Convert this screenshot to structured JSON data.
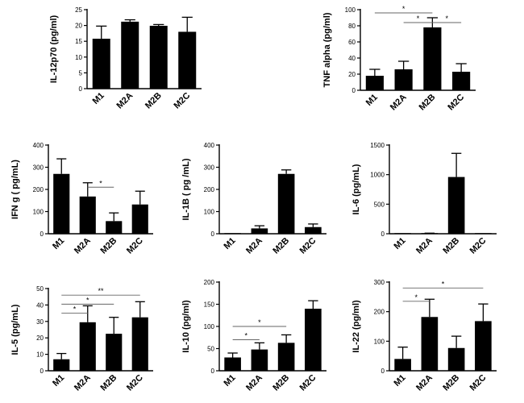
{
  "chart_data": [
    {
      "type": "bar",
      "ylabel": "IL-12p70 (pg/ml)",
      "categories": [
        "M1",
        "M2A",
        "M2B",
        "M2C"
      ],
      "values": [
        15.8,
        21.2,
        19.9,
        18.0
      ],
      "errors": [
        4.0,
        0.6,
        0.4,
        4.6
      ],
      "ylim": [
        0,
        25
      ],
      "yticks": [
        0,
        5,
        10,
        15,
        20,
        25
      ],
      "significance": []
    },
    {
      "type": "bar",
      "ylabel": "TNF alpha (pg/ml)",
      "categories": [
        "M1",
        "M2A",
        "M2B",
        "M2C"
      ],
      "values": [
        18,
        26,
        78,
        23
      ],
      "errors": [
        8,
        10,
        12,
        10
      ],
      "ylim": [
        0,
        100
      ],
      "yticks": [
        0,
        20,
        40,
        60,
        80,
        100
      ],
      "significance": [
        {
          "from": 0,
          "to": 2,
          "y": 96,
          "label": "*"
        },
        {
          "from": 1,
          "to": 2,
          "y": 84,
          "label": "*"
        },
        {
          "from": 2,
          "to": 3,
          "y": 84,
          "label": "*"
        }
      ]
    },
    {
      "type": "bar",
      "ylabel": "IFN g ( pg/mL)",
      "categories": [
        "M1",
        "M2A",
        "M2B",
        "M2C"
      ],
      "values": [
        270,
        168,
        57,
        132
      ],
      "errors": [
        68,
        62,
        37,
        60
      ],
      "ylim": [
        0,
        400
      ],
      "yticks": [
        0,
        100,
        200,
        300,
        400
      ],
      "significance": [
        {
          "from": 1,
          "to": 2,
          "y": 210,
          "label": "*"
        }
      ]
    },
    {
      "type": "bar",
      "ylabel": "IL-1B ( pg /mL)",
      "categories": [
        "M1",
        "M2A",
        "M2B",
        "M2C"
      ],
      "values": [
        0,
        24,
        270,
        30
      ],
      "errors": [
        0,
        12,
        18,
        14
      ],
      "ylim": [
        0,
        400
      ],
      "yticks": [
        0,
        100,
        200,
        300,
        400
      ],
      "significance": []
    },
    {
      "type": "bar",
      "ylabel": "IL-6 (pg/mL)",
      "categories": [
        "M1",
        "M2A",
        "M2B",
        "M2C"
      ],
      "values": [
        0,
        5,
        960,
        0
      ],
      "errors": [
        0,
        5,
        400,
        0
      ],
      "ylim": [
        0,
        1500
      ],
      "yticks": [
        0,
        500,
        1000,
        1500
      ],
      "significance": []
    },
    {
      "type": "bar",
      "ylabel": "IL-5 (pg/mL)",
      "categories": [
        "M1",
        "M2A",
        "M2B",
        "M2C"
      ],
      "values": [
        7,
        29.5,
        22.5,
        32.5
      ],
      "errors": [
        3.5,
        10,
        10,
        9.5
      ],
      "ylim": [
        0,
        50
      ],
      "yticks": [
        0,
        10,
        20,
        30,
        40,
        50
      ],
      "significance": [
        {
          "from": 0,
          "to": 3,
          "y": 46,
          "label": "**"
        },
        {
          "from": 0,
          "to": 2,
          "y": 40.5,
          "label": "*"
        },
        {
          "from": 0,
          "to": 1,
          "y": 35,
          "label": "*"
        }
      ]
    },
    {
      "type": "bar",
      "ylabel": "IL-10 (pg/ml)",
      "categories": [
        "M1",
        "M2A",
        "M2B",
        "M2C"
      ],
      "values": [
        30,
        48,
        63,
        140
      ],
      "errors": [
        10,
        15,
        18,
        18
      ],
      "ylim": [
        0,
        200
      ],
      "yticks": [
        0,
        50,
        100,
        150,
        200
      ],
      "significance": [
        {
          "from": 0,
          "to": 2,
          "y": 100,
          "label": "*"
        },
        {
          "from": 0,
          "to": 1,
          "y": 70,
          "label": "*"
        }
      ]
    },
    {
      "type": "bar",
      "ylabel": "IL-22 (pg/ml)",
      "categories": [
        "M1",
        "M2A",
        "M2B",
        "M2C"
      ],
      "values": [
        40,
        182,
        77,
        168
      ],
      "errors": [
        40,
        60,
        40,
        58
      ],
      "ylim": [
        0,
        300
      ],
      "yticks": [
        0,
        100,
        200,
        300
      ],
      "significance": [
        {
          "from": 0,
          "to": 3,
          "y": 280,
          "label": "*"
        },
        {
          "from": 0,
          "to": 1,
          "y": 235,
          "label": "*"
        }
      ]
    }
  ]
}
